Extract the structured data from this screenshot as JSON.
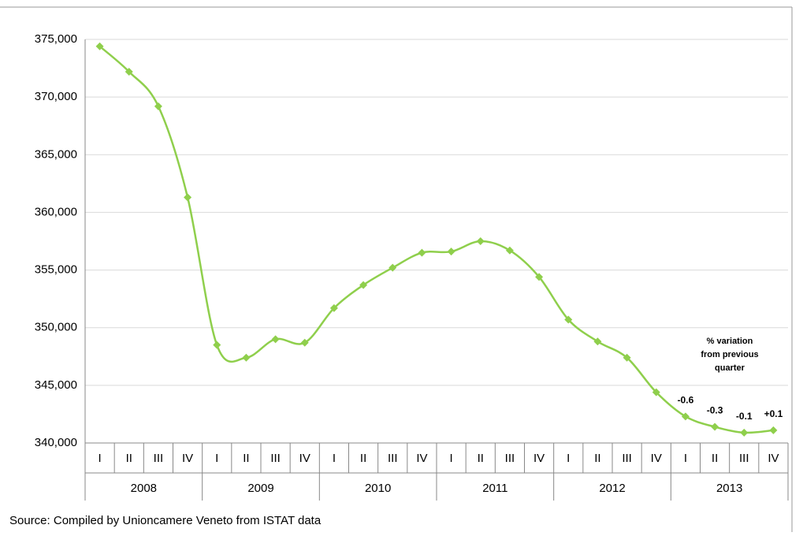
{
  "chart_data": {
    "type": "line",
    "categories": [
      "I",
      "II",
      "III",
      "IV",
      "I",
      "II",
      "III",
      "IV",
      "I",
      "II",
      "III",
      "IV",
      "I",
      "II",
      "III",
      "IV",
      "I",
      "II",
      "III",
      "IV",
      "I",
      "II",
      "III",
      "IV"
    ],
    "groups": [
      "2008",
      "2009",
      "2010",
      "2011",
      "2012",
      "2013"
    ],
    "series": [
      {
        "color": "#8fcf4c",
        "values": [
          374400,
          372200,
          369200,
          361300,
          348500,
          347400,
          349000,
          348700,
          351700,
          353700,
          355200,
          356500,
          356600,
          357500,
          356700,
          354400,
          350700,
          348800,
          347400,
          344400,
          342300,
          341400,
          340900,
          341100
        ],
        "point_labels": [
          null,
          null,
          null,
          null,
          null,
          null,
          null,
          null,
          null,
          null,
          null,
          null,
          null,
          null,
          null,
          null,
          null,
          null,
          null,
          null,
          "-0.6",
          "-0.3",
          "-0.1",
          "+0.1"
        ]
      }
    ],
    "ylim": [
      340000,
      375000
    ],
    "yticks": [
      {
        "value": 340000,
        "label": "340,000"
      },
      {
        "value": 345000,
        "label": "345,000"
      },
      {
        "value": 350000,
        "label": "350,000"
      },
      {
        "value": 355000,
        "label": "355,000"
      },
      {
        "value": 360000,
        "label": "360,000"
      },
      {
        "value": 365000,
        "label": "365,000"
      },
      {
        "value": 370000,
        "label": "370,000"
      },
      {
        "value": 375000,
        "label": "375,000"
      }
    ],
    "grid": true,
    "annotation": [
      "% variation",
      "from previous",
      "quarter"
    ],
    "source": "Source: Compiled by Unioncamere Veneto from ISTAT data"
  }
}
